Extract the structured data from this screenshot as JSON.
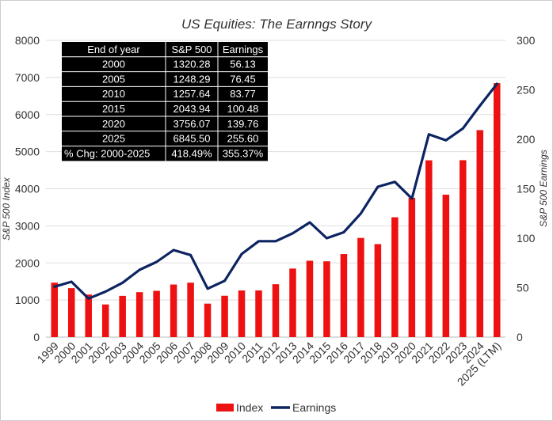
{
  "chart_data": {
    "type": "bar",
    "title": "US Equities: The Earnngs Story",
    "ylabel": "S&P 500 Index",
    "y2label": "S&P 500 Earnings",
    "ylim": [
      0,
      8000
    ],
    "y2lim": [
      0,
      300
    ],
    "yticks": [
      "0",
      "1000",
      "2000",
      "3000",
      "4000",
      "5000",
      "6000",
      "7000",
      "8000"
    ],
    "y2ticks": [
      "0",
      "50",
      "100",
      "150",
      "200",
      "250",
      "300"
    ],
    "categories": [
      "1999",
      "2000",
      "2001",
      "2002",
      "2003",
      "2004",
      "2005",
      "2006",
      "2007",
      "2008",
      "2009",
      "2010",
      "2011",
      "2012",
      "2013",
      "2014",
      "2015",
      "2016",
      "2017",
      "2018",
      "2019",
      "2020",
      "2021",
      "2022",
      "2023",
      "2024",
      "2025 (LTM)"
    ],
    "series": [
      {
        "name": "Index",
        "type": "bar",
        "axis": "left",
        "color": "#ee1111",
        "values": [
          1469,
          1320,
          1148,
          880,
          1112,
          1212,
          1248,
          1418,
          1468,
          903,
          1115,
          1258,
          1258,
          1426,
          1848,
          2059,
          2044,
          2239,
          2674,
          2507,
          3231,
          3756,
          4766,
          3840,
          4770,
          5580,
          6846
        ]
      },
      {
        "name": "Earnings",
        "type": "line",
        "axis": "right",
        "color": "#0c2461",
        "values": [
          51,
          56,
          39,
          46,
          55,
          68,
          76,
          88,
          83,
          49,
          57,
          84,
          97,
          97,
          105,
          116,
          100,
          106,
          125,
          152,
          157,
          140,
          205,
          199,
          211,
          234,
          256
        ]
      }
    ],
    "legend": "bottom",
    "table": {
      "headers": [
        "End of year",
        "S&P 500",
        "Earnings"
      ],
      "rows": [
        [
          "2000",
          "1320.28",
          "56.13"
        ],
        [
          "2005",
          "1248.29",
          "76.45"
        ],
        [
          "2010",
          "1257.64",
          "83.77"
        ],
        [
          "2015",
          "2043.94",
          "100.48"
        ],
        [
          "2020",
          "3756.07",
          "139.76"
        ],
        [
          "2025",
          "6845.50",
          "255.60"
        ],
        [
          "% Chg: 2000-2025",
          "418.49%",
          "355.37%"
        ]
      ]
    }
  }
}
